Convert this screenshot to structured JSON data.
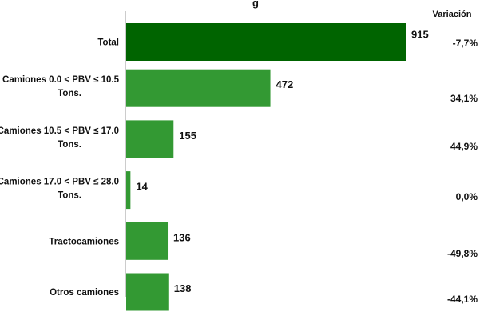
{
  "chart_data": {
    "type": "bar",
    "orientation": "horizontal",
    "title": "g",
    "variation_header": "Variación",
    "categories": [
      "Total",
      "Camiones 0.0 < PBV ≤ 10.5 Tons.",
      "Camiones 10.5 < PBV ≤ 17.0 Tons.",
      "Camiones 17.0 < PBV ≤ 28.0 Tons.",
      "Tractocamiones",
      "Otros camiones"
    ],
    "values": [
      915,
      472,
      155,
      14,
      136,
      138
    ],
    "value_labels": [
      "915",
      "472",
      "155",
      "14",
      "136",
      "138"
    ],
    "variation": [
      "-7,7%",
      "34,1%",
      "44,9%",
      "0,0%",
      "-49,8%",
      "-44,1%"
    ],
    "xlim": [
      0,
      1000
    ],
    "grid": false,
    "legend": "none",
    "colors": {
      "highlight": "#006400",
      "bars": "#339933",
      "axis": "#999999"
    }
  }
}
